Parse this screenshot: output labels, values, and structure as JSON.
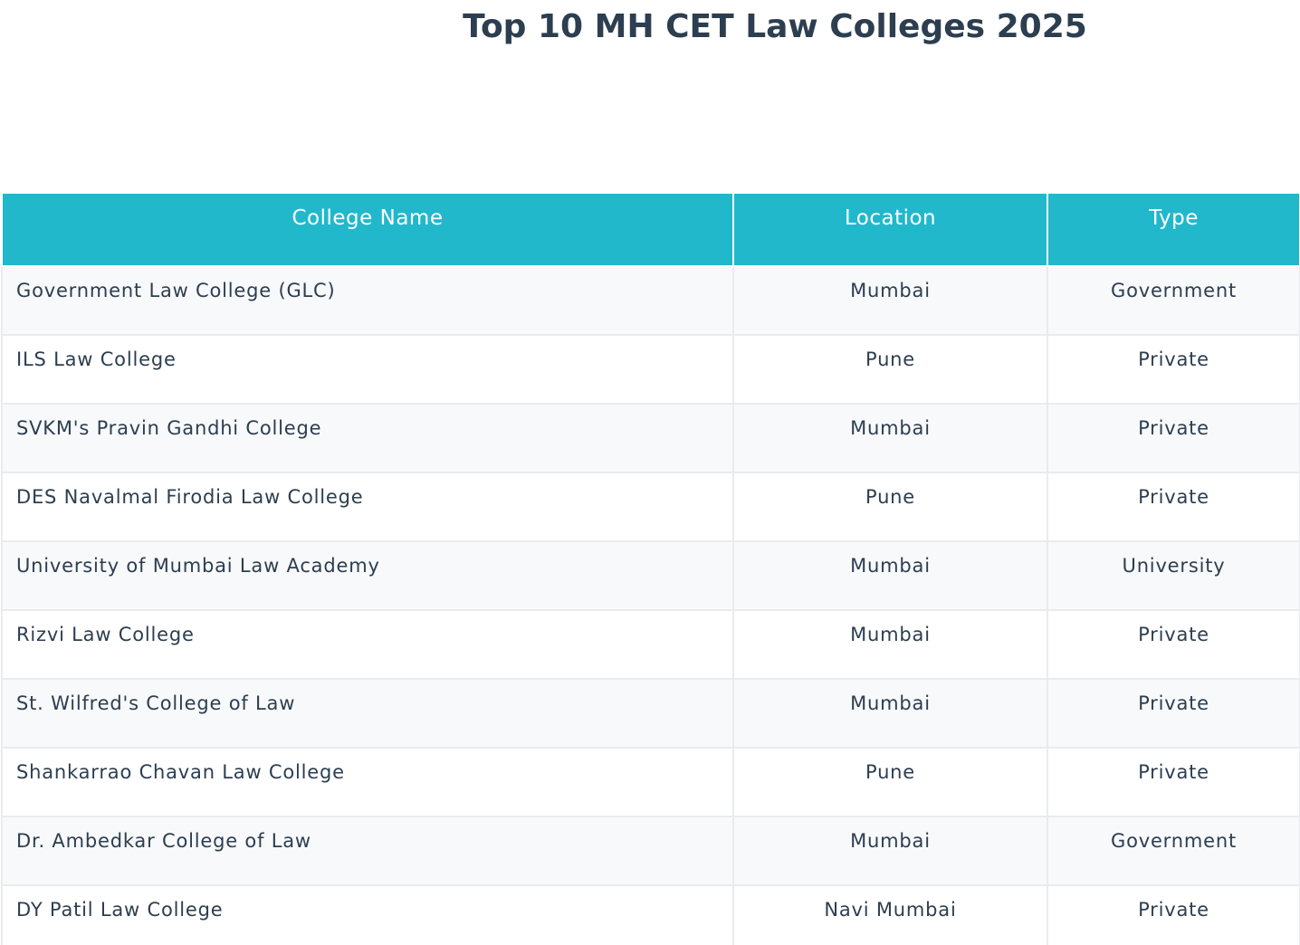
{
  "chart_data": {
    "type": "table",
    "title": "Top 10 MH CET Law Colleges 2025",
    "columns": [
      "College Name",
      "Location",
      "Type"
    ],
    "rows": [
      [
        "Government Law College (GLC)",
        "Mumbai",
        "Government"
      ],
      [
        "ILS Law College",
        "Pune",
        "Private"
      ],
      [
        "SVKM's Pravin Gandhi College",
        "Mumbai",
        "Private"
      ],
      [
        "DES Navalmal Firodia Law College",
        "Pune",
        "Private"
      ],
      [
        "University of Mumbai Law Academy",
        "Mumbai",
        "University"
      ],
      [
        "Rizvi Law College",
        "Mumbai",
        "Private"
      ],
      [
        "St. Wilfred's College of Law",
        "Mumbai",
        "Private"
      ],
      [
        "Shankarrao Chavan Law College",
        "Pune",
        "Private"
      ],
      [
        "Dr. Ambedkar College of Law",
        "Mumbai",
        "Government"
      ],
      [
        "DY Patil Law College",
        "Navi Mumbai",
        "Private"
      ]
    ]
  },
  "colors": {
    "header_background": "#21b8cc",
    "header_text": "#ffffff",
    "body_text": "#2c3e50",
    "stripe_row": "#f8f9fb",
    "grid_line": "#e9ecef"
  }
}
